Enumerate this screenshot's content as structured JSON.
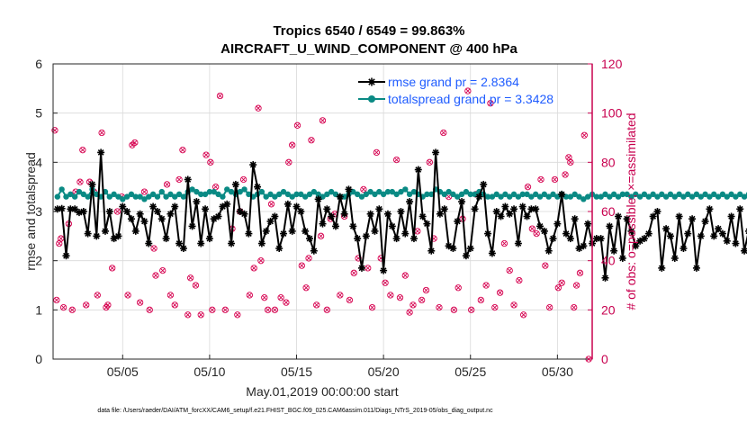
{
  "chart_data": {
    "type": "line",
    "title_line1": "Tropics 6540 / 6549 = 99.863%",
    "title_line2": "AIRCRAFT_U_WIND_COMPONENT @ 400 hPa",
    "xlabel": "May.01,2019 00:00:00 start",
    "ylabel": "rmse and totalspread",
    "ylabel_right": "# of obs: o=possible; ×=assimilated",
    "footer": "data file: /Users/raeder/DAI/ATM_forcXX/CAM6_setup/f.e21.FHIST_BGC.f09_025.CAM6assim.011/Diags_NTrS_2019-05/obs_diag_output.nc",
    "xlim": [
      1,
      32
    ],
    "ylim": [
      0,
      6
    ],
    "ylim_right": [
      0,
      120
    ],
    "x_ticks": [
      5,
      10,
      15,
      20,
      25,
      30
    ],
    "x_tick_labels": [
      "05/05",
      "05/10",
      "05/15",
      "05/20",
      "05/25",
      "05/30"
    ],
    "y_ticks": [
      0,
      1,
      2,
      3,
      4,
      5,
      6
    ],
    "y_tick_labels": [
      "0",
      "1",
      "2",
      "3",
      "4",
      "5",
      "6"
    ],
    "y_right_ticks": [
      0,
      20,
      40,
      60,
      80,
      100,
      120
    ],
    "y_right_tick_labels": [
      "0",
      "20",
      "40",
      "60",
      "80",
      "100",
      "120"
    ],
    "grid": true,
    "legend_position": "top-right",
    "colors": {
      "rmse": "#000000",
      "spread": "#0a8a84",
      "obs": "#d6004f",
      "legend_text": "#1f5cff",
      "right_axis": "#c8004f",
      "grid": "#d9d9d9"
    },
    "x_start": 1.25,
    "x_step": 0.25,
    "series": [
      {
        "name": "rmse grand pr = 2.8364",
        "key": "rmse",
        "values": [
          3.05,
          3.06,
          2.1,
          3.05,
          3.05,
          2.98,
          3.0,
          2.55,
          3.55,
          2.5,
          4.2,
          2.6,
          3.0,
          2.45,
          2.5,
          3.1,
          3.0,
          2.85,
          2.6,
          2.95,
          2.8,
          2.35,
          3.1,
          3.0,
          2.85,
          2.45,
          2.95,
          3.1,
          2.35,
          2.25,
          3.65,
          2.7,
          3.2,
          2.35,
          3.05,
          2.45,
          2.85,
          2.9,
          3.1,
          3.15,
          2.35,
          3.55,
          3.0,
          2.95,
          2.55,
          3.95,
          3.5,
          2.35,
          2.6,
          2.8,
          2.9,
          2.25,
          2.55,
          3.15,
          2.6,
          3.1,
          3.0,
          2.6,
          2.45,
          2.2,
          3.25,
          2.75,
          3.05,
          2.9,
          2.7,
          3.3,
          2.95,
          3.45,
          2.7,
          2.45,
          1.85,
          2.5,
          2.95,
          2.6,
          3.05,
          1.8,
          2.95,
          2.7,
          2.45,
          3.0,
          2.55,
          3.2,
          2.45,
          3.85,
          2.9,
          2.75,
          2.2,
          4.2,
          2.95,
          3.05,
          2.3,
          2.25,
          2.8,
          3.2,
          2.1,
          2.25,
          3.05,
          3.3,
          3.55,
          2.55,
          2.15,
          3.0,
          2.9,
          3.1,
          2.95,
          3.05,
          2.35,
          3.1,
          2.9,
          3.05,
          3.05,
          2.7,
          2.6,
          2.2,
          2.45,
          2.75,
          3.35,
          2.55,
          2.45,
          2.85,
          2.25,
          2.3,
          2.75,
          2.35,
          2.45,
          2.45,
          1.65,
          2.7,
          2.2,
          2.9,
          2.05,
          2.85,
          2.6,
          2.3,
          2.4,
          2.45,
          2.55,
          2.9,
          3.0,
          1.85,
          2.65,
          2.5,
          2.05,
          2.9,
          2.25,
          2.55,
          2.85,
          1.85,
          2.5,
          2.8,
          3.05,
          2.5,
          2.65,
          2.55,
          2.4,
          2.9,
          2.35,
          3.05,
          2.2,
          2.6,
          2.2,
          2.6,
          2.9,
          2.6,
          2.55,
          2.4,
          2.3,
          2.55,
          1.85,
          2.55,
          2.6,
          2.5,
          2.45,
          2.3,
          2.6,
          2.45,
          2.55,
          2.25,
          2.7,
          2.55,
          3.15,
          3.4,
          2.3,
          2.25,
          3.6,
          3.7,
          2.45,
          2.45,
          3.05
        ]
      },
      {
        "name": "totalspread grand pr = 3.3428",
        "key": "spread",
        "values": [
          3.3,
          3.45,
          3.3,
          3.35,
          3.3,
          3.4,
          3.35,
          3.3,
          3.45,
          3.35,
          3.3,
          3.4,
          3.3,
          3.35,
          3.3,
          3.25,
          3.3,
          3.35,
          3.3,
          3.3,
          3.25,
          3.3,
          3.35,
          3.3,
          3.4,
          3.3,
          3.35,
          3.3,
          3.35,
          3.3,
          3.4,
          3.45,
          3.4,
          3.35,
          3.35,
          3.4,
          3.4,
          3.35,
          3.3,
          3.45,
          3.4,
          3.35,
          3.4,
          3.45,
          3.35,
          3.3,
          3.35,
          3.4,
          3.3,
          3.35,
          3.3,
          3.35,
          3.4,
          3.35,
          3.3,
          3.35,
          3.35,
          3.3,
          3.35,
          3.4,
          3.35,
          3.3,
          3.35,
          3.4,
          3.35,
          3.3,
          3.3,
          3.35,
          3.4,
          3.35,
          3.3,
          3.35,
          3.4,
          3.35,
          3.4,
          3.35,
          3.4,
          3.4,
          3.35,
          3.4,
          3.45,
          3.35,
          3.4,
          3.35,
          3.3,
          3.35,
          3.35,
          3.45,
          3.4,
          3.35,
          3.4,
          3.35,
          3.3,
          3.35,
          3.4,
          3.35,
          3.35,
          3.4,
          3.35,
          3.3,
          3.3,
          3.35,
          3.3,
          3.35,
          3.3,
          3.35,
          3.3,
          3.35,
          3.35,
          3.3,
          3.35,
          3.3,
          3.35,
          3.3,
          3.35,
          3.3,
          3.35,
          3.3,
          3.3,
          3.35,
          3.3,
          3.25,
          3.3,
          3.35,
          3.3,
          3.3,
          3.35,
          3.3,
          3.35,
          3.3,
          3.35,
          3.35,
          3.3,
          3.35,
          3.3,
          3.35,
          3.3,
          3.35,
          3.3,
          3.35,
          3.3,
          3.35,
          3.3,
          3.35,
          3.3,
          3.35,
          3.3,
          3.35,
          3.3,
          3.35,
          3.3,
          3.35,
          3.3,
          3.35,
          3.3,
          3.35,
          3.3,
          3.35,
          3.3,
          3.35,
          3.3,
          3.35,
          3.3,
          3.35,
          3.3,
          3.35,
          3.4,
          3.35,
          3.3,
          3.35,
          3.3,
          3.35,
          3.4,
          3.35,
          3.45,
          3.5,
          3.4,
          3.45,
          3.5,
          3.35,
          3.4,
          3.35,
          3.4,
          3.45,
          3.4,
          3.45,
          3.4
        ]
      }
    ],
    "obs_points": [
      {
        "x": 1.1,
        "y": 93
      },
      {
        "x": 1.2,
        "y": 24
      },
      {
        "x": 1.35,
        "y": 47
      },
      {
        "x": 1.45,
        "y": 49
      },
      {
        "x": 1.6,
        "y": 21
      },
      {
        "x": 1.9,
        "y": 55
      },
      {
        "x": 2.1,
        "y": 20
      },
      {
        "x": 2.3,
        "y": 68
      },
      {
        "x": 2.55,
        "y": 72
      },
      {
        "x": 2.7,
        "y": 85
      },
      {
        "x": 2.9,
        "y": 22
      },
      {
        "x": 3.1,
        "y": 72
      },
      {
        "x": 3.35,
        "y": 68
      },
      {
        "x": 3.55,
        "y": 26
      },
      {
        "x": 3.8,
        "y": 92
      },
      {
        "x": 4.05,
        "y": 21
      },
      {
        "x": 4.15,
        "y": 22
      },
      {
        "x": 4.4,
        "y": 37
      },
      {
        "x": 4.7,
        "y": 60
      },
      {
        "x": 4.95,
        "y": 66
      },
      {
        "x": 5.3,
        "y": 26
      },
      {
        "x": 5.55,
        "y": 87
      },
      {
        "x": 5.7,
        "y": 88
      },
      {
        "x": 6.0,
        "y": 23
      },
      {
        "x": 6.25,
        "y": 68
      },
      {
        "x": 6.55,
        "y": 20
      },
      {
        "x": 6.8,
        "y": 45
      },
      {
        "x": 6.9,
        "y": 34
      },
      {
        "x": 7.3,
        "y": 36
      },
      {
        "x": 7.55,
        "y": 71
      },
      {
        "x": 7.75,
        "y": 26
      },
      {
        "x": 8.0,
        "y": 22
      },
      {
        "x": 8.25,
        "y": 73
      },
      {
        "x": 8.45,
        "y": 85
      },
      {
        "x": 8.75,
        "y": 18
      },
      {
        "x": 8.9,
        "y": 33
      },
      {
        "x": 9.2,
        "y": 30
      },
      {
        "x": 9.5,
        "y": 18
      },
      {
        "x": 9.8,
        "y": 83
      },
      {
        "x": 10.05,
        "y": 80
      },
      {
        "x": 10.15,
        "y": 20
      },
      {
        "x": 10.35,
        "y": 70
      },
      {
        "x": 10.6,
        "y": 107
      },
      {
        "x": 10.9,
        "y": 20
      },
      {
        "x": 11.3,
        "y": 53
      },
      {
        "x": 11.6,
        "y": 18
      },
      {
        "x": 11.75,
        "y": 60
      },
      {
        "x": 11.95,
        "y": 73
      },
      {
        "x": 12.3,
        "y": 26
      },
      {
        "x": 12.55,
        "y": 37
      },
      {
        "x": 12.8,
        "y": 102
      },
      {
        "x": 12.95,
        "y": 40
      },
      {
        "x": 13.15,
        "y": 25
      },
      {
        "x": 13.35,
        "y": 20
      },
      {
        "x": 13.55,
        "y": 63
      },
      {
        "x": 13.75,
        "y": 20
      },
      {
        "x": 14.1,
        "y": 25
      },
      {
        "x": 14.4,
        "y": 23
      },
      {
        "x": 14.55,
        "y": 80
      },
      {
        "x": 14.75,
        "y": 87
      },
      {
        "x": 15.05,
        "y": 95
      },
      {
        "x": 15.3,
        "y": 38
      },
      {
        "x": 15.55,
        "y": 29
      },
      {
        "x": 15.7,
        "y": 41
      },
      {
        "x": 15.85,
        "y": 89
      },
      {
        "x": 16.15,
        "y": 22
      },
      {
        "x": 16.4,
        "y": 50
      },
      {
        "x": 16.5,
        "y": 97
      },
      {
        "x": 16.75,
        "y": 20
      },
      {
        "x": 16.95,
        "y": 57
      },
      {
        "x": 17.2,
        "y": 59
      },
      {
        "x": 17.5,
        "y": 26
      },
      {
        "x": 17.75,
        "y": 58
      },
      {
        "x": 18.05,
        "y": 24
      },
      {
        "x": 18.3,
        "y": 35
      },
      {
        "x": 18.55,
        "y": 41
      },
      {
        "x": 18.85,
        "y": 69
      },
      {
        "x": 19.1,
        "y": 37
      },
      {
        "x": 19.35,
        "y": 21
      },
      {
        "x": 19.6,
        "y": 84
      },
      {
        "x": 19.85,
        "y": 41
      },
      {
        "x": 20.1,
        "y": 31
      },
      {
        "x": 20.4,
        "y": 26
      },
      {
        "x": 20.75,
        "y": 81
      },
      {
        "x": 20.95,
        "y": 25
      },
      {
        "x": 21.25,
        "y": 34
      },
      {
        "x": 21.5,
        "y": 19
      },
      {
        "x": 21.7,
        "y": 22
      },
      {
        "x": 21.95,
        "y": 52
      },
      {
        "x": 22.2,
        "y": 24
      },
      {
        "x": 22.45,
        "y": 28
      },
      {
        "x": 22.65,
        "y": 80
      },
      {
        "x": 22.9,
        "y": 49
      },
      {
        "x": 23.2,
        "y": 21
      },
      {
        "x": 23.45,
        "y": 92
      },
      {
        "x": 23.75,
        "y": 66
      },
      {
        "x": 24.05,
        "y": 20
      },
      {
        "x": 24.3,
        "y": 29
      },
      {
        "x": 24.55,
        "y": 57
      },
      {
        "x": 24.85,
        "y": 109
      },
      {
        "x": 25.05,
        "y": 20
      },
      {
        "x": 25.3,
        "y": 67
      },
      {
        "x": 25.6,
        "y": 24
      },
      {
        "x": 25.9,
        "y": 30
      },
      {
        "x": 26.15,
        "y": 104
      },
      {
        "x": 26.4,
        "y": 21
      },
      {
        "x": 26.7,
        "y": 27
      },
      {
        "x": 26.95,
        "y": 47
      },
      {
        "x": 27.25,
        "y": 36
      },
      {
        "x": 27.5,
        "y": 22
      },
      {
        "x": 27.8,
        "y": 32
      },
      {
        "x": 28.05,
        "y": 18
      },
      {
        "x": 28.3,
        "y": 70
      },
      {
        "x": 28.55,
        "y": 53
      },
      {
        "x": 28.8,
        "y": 51
      },
      {
        "x": 29.05,
        "y": 73
      },
      {
        "x": 29.3,
        "y": 38
      },
      {
        "x": 29.55,
        "y": 21
      },
      {
        "x": 29.85,
        "y": 73
      },
      {
        "x": 30.05,
        "y": 29
      },
      {
        "x": 30.25,
        "y": 31
      },
      {
        "x": 30.45,
        "y": 75
      },
      {
        "x": 30.65,
        "y": 82
      },
      {
        "x": 30.75,
        "y": 80
      },
      {
        "x": 30.95,
        "y": 21
      },
      {
        "x": 31.1,
        "y": 30
      },
      {
        "x": 31.3,
        "y": 35
      },
      {
        "x": 31.55,
        "y": 91
      },
      {
        "x": 31.8,
        "y": 0
      }
    ]
  }
}
